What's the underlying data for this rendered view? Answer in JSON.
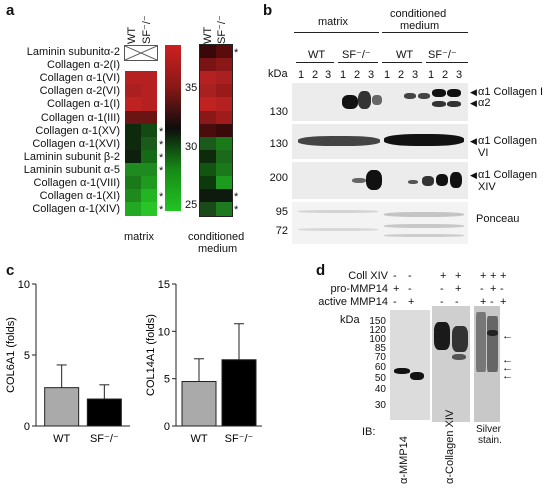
{
  "panels": {
    "a": {
      "label": "a",
      "rows": [
        "Laminin subunitα-2",
        "Collagen α-2(I)",
        "Collagen α-1(VI)",
        "Collagen α-2(VI)",
        "Collagen α-1(I)",
        "Collagen α-1(III)",
        "Collagen α-1(XV)",
        "Collagen α-1(XVI)",
        "Laminin subunit β-2",
        "Laminin subunit α-5",
        "Collagen α-1(VIII)",
        "Collagen α-1(XI)",
        "Collagen α-1(XIV)"
      ],
      "col_heads": [
        "WT",
        "SF⁻/⁻"
      ],
      "right_heads": [
        "WT",
        "SF⁻/⁻"
      ],
      "matrix_stars": [
        "",
        "",
        "",
        "",
        "",
        "",
        "*",
        "*",
        "*",
        "*",
        "",
        "*",
        "*"
      ],
      "medium_stars": [
        "*",
        "",
        "",
        "",
        "",
        "",
        "",
        "",
        "",
        "",
        "",
        "*",
        "*"
      ],
      "scale_ticks": [
        "35",
        "30",
        "25"
      ],
      "matrix_label": "matrix",
      "medium_label_1": "conditioned",
      "medium_label_2": "medium",
      "colors": {
        "red": "#cc2020",
        "black": "#0d0d0d",
        "green": "#22b422"
      }
    },
    "b": {
      "label": "b",
      "head_matrix": "matrix",
      "head_cm_1": "conditioned",
      "head_cm_2": "medium",
      "groups": [
        "WT",
        "SF⁻/⁻",
        "WT",
        "SF⁻/⁻"
      ],
      "lanes": [
        "1",
        "2",
        "3",
        "1",
        "2",
        "3",
        "1",
        "2",
        "3",
        "1",
        "2",
        "3"
      ],
      "kda": "kDa",
      "markers": [
        "130",
        "130",
        "200",
        "95",
        "72"
      ],
      "labels": [
        "α1 Collagen I",
        "α2",
        "α1 Collagen VI",
        "α1 Collagen XIV",
        "Ponceau"
      ]
    },
    "c": {
      "label": "c",
      "charts": [
        {
          "ylabel": "COL6A1 (folds)",
          "categories": [
            "WT",
            "SF⁻/⁻"
          ],
          "values": [
            2.7,
            1.9
          ],
          "errors": [
            1.6,
            1.0
          ],
          "ylim": [
            0,
            10
          ],
          "ticks": [
            "0",
            "5",
            "10"
          ]
        },
        {
          "ylabel": "COL14A1 (folds)",
          "categories": [
            "WT",
            "SF⁻/⁻"
          ],
          "values": [
            4.7,
            7.0
          ],
          "errors": [
            2.4,
            3.8
          ],
          "ylim": [
            0,
            15
          ],
          "ticks": [
            "0",
            "5",
            "10",
            "15"
          ]
        }
      ],
      "colors": {
        "wt": "#aaaaaa",
        "sf": "#000000"
      }
    },
    "d": {
      "label": "d",
      "conditions": [
        "Coll XIV",
        "pro-MMP14",
        "active MMP14"
      ],
      "signs": [
        [
          "-",
          "-",
          "+",
          "+",
          "+",
          "+",
          "+"
        ],
        [
          "+",
          "-",
          "-",
          "+",
          "-",
          "+",
          "-"
        ],
        [
          "-",
          "+",
          "-",
          "-",
          "+",
          "-",
          "+"
        ]
      ],
      "kda": "kDa",
      "markers": [
        "150",
        "120",
        "100",
        "85",
        "70",
        "60",
        "50",
        "40",
        "30"
      ],
      "ib": "IB:",
      "ib_labels": [
        "α-MMP14",
        "α-Collagen XIV"
      ],
      "silver_1": "Silver",
      "silver_2": "stain."
    }
  },
  "chart_data": [
    {
      "type": "bar",
      "categories": [
        "WT",
        "SF⁻/⁻"
      ],
      "series": [
        {
          "values": [
            2.7,
            1.9
          ],
          "errors": [
            1.6,
            1.0
          ]
        }
      ],
      "ylabel": "COL6A1 (folds)",
      "ylim": [
        0,
        10
      ]
    },
    {
      "type": "bar",
      "categories": [
        "WT",
        "SF⁻/⁻"
      ],
      "series": [
        {
          "values": [
            4.7,
            7.0
          ],
          "errors": [
            2.4,
            3.8
          ]
        }
      ],
      "ylabel": "COL14A1 (folds)",
      "ylim": [
        0,
        15
      ]
    }
  ]
}
